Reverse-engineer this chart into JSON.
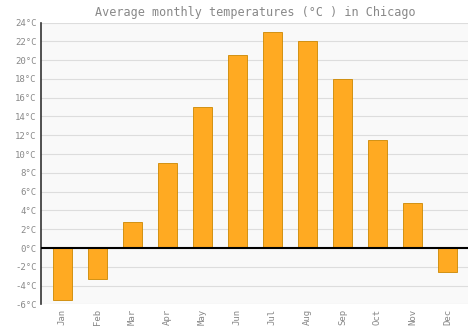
{
  "title": "Average monthly temperatures (°C ) in Chicago",
  "months": [
    "Jan",
    "Feb",
    "Mar",
    "Apr",
    "May",
    "Jun",
    "Jul",
    "Aug",
    "Sep",
    "Oct",
    "Nov",
    "Dec"
  ],
  "values": [
    -5.5,
    -3.3,
    2.8,
    9.0,
    15.0,
    20.5,
    23.0,
    22.0,
    18.0,
    11.5,
    4.8,
    -2.5
  ],
  "bar_color": "#FFAA22",
  "bar_edge_color": "#CC8800",
  "ylim": [
    -6,
    24
  ],
  "yticks": [
    -6,
    -4,
    -2,
    0,
    2,
    4,
    6,
    8,
    10,
    12,
    14,
    16,
    18,
    20,
    22,
    24
  ],
  "background_color": "#ffffff",
  "plot_background_color": "#f9f9f9",
  "grid_color": "#dddddd",
  "zero_line_color": "#000000",
  "title_fontsize": 8.5,
  "tick_fontsize": 6.5,
  "font_color": "#888888",
  "bar_width": 0.55
}
